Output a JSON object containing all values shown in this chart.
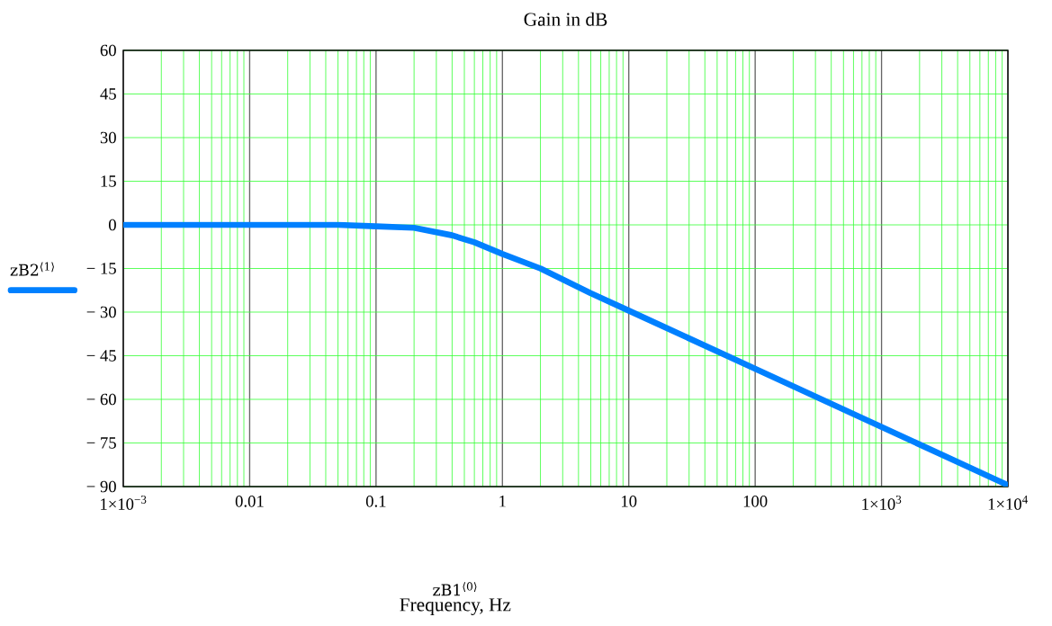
{
  "chart_data": {
    "type": "line",
    "title": "Gain in dB",
    "xlabel": "zB1$^{⟨0⟩}$",
    "annotations": [
      "Frequency, Hz"
    ],
    "x": [
      0.001,
      0.01,
      0.05,
      0.1,
      0.2,
      0.4,
      0.6,
      1,
      2,
      5,
      10,
      100,
      1000,
      10000
    ],
    "series": [
      {
        "name": "zB2$^{⟨1⟩}$",
        "color": "#0080ff",
        "values": [
          0,
          0,
          0,
          -0.5,
          -1,
          -3.6,
          -6,
          -10,
          -15,
          -23.5,
          -29.5,
          -49.5,
          -69.5,
          -89.5
        ]
      }
    ],
    "log": "x",
    "grid": true,
    "legend": "left",
    "xlim": [
      0.001,
      10000
    ],
    "xticks": [
      {
        "value": 0.001,
        "label": "1×10$^{−3}$"
      },
      0.01,
      0.1,
      1,
      10,
      100,
      {
        "value": 1000,
        "label": "1×10$^{3}$"
      },
      {
        "value": 10000,
        "label": "1×10$^{4}$"
      }
    ],
    "ylim": [
      -90,
      60
    ],
    "yticks": [
      {
        "value": -90,
        "label": "− 90"
      },
      {
        "value": -75,
        "label": "− 75"
      },
      {
        "value": -60,
        "label": "− 60"
      },
      {
        "value": -45,
        "label": "− 45"
      },
      {
        "value": -30,
        "label": "− 30"
      },
      {
        "value": -15,
        "label": "− 15"
      },
      0,
      15,
      30,
      45,
      60
    ]
  }
}
